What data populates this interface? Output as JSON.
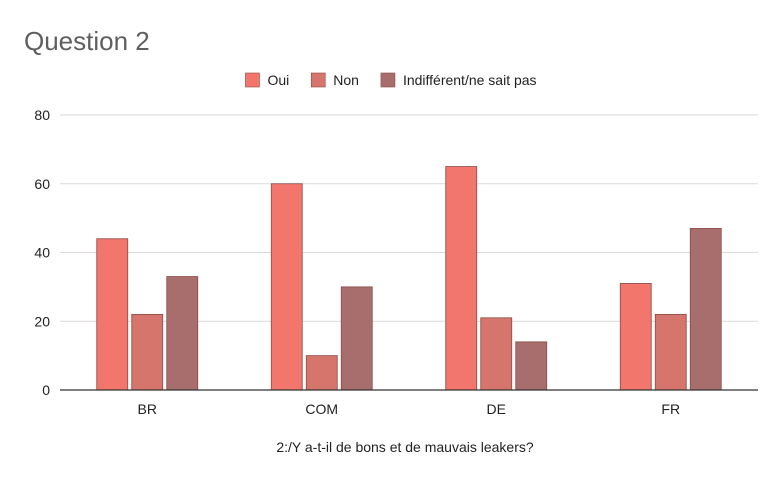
{
  "chart_data": {
    "type": "bar",
    "title": "Question 2",
    "xlabel": "2:/Y a-t-il de bons et de mauvais leakers?",
    "ylabel": "",
    "categories": [
      "BR",
      "COM",
      "DE",
      "FR"
    ],
    "series": [
      {
        "name": "Oui",
        "color": "#f2766b",
        "values": [
          44,
          60,
          65,
          31
        ]
      },
      {
        "name": "Non",
        "color": "#d6756b",
        "values": [
          22,
          10,
          21,
          22
        ]
      },
      {
        "name": "Indifférent/ne sait pas",
        "color": "#a86d6d",
        "values": [
          33,
          30,
          14,
          47
        ]
      }
    ],
    "ylim": [
      0,
      80
    ],
    "yticks": [
      0,
      20,
      40,
      60,
      80
    ],
    "grid": true,
    "legend_position": "top-center"
  }
}
